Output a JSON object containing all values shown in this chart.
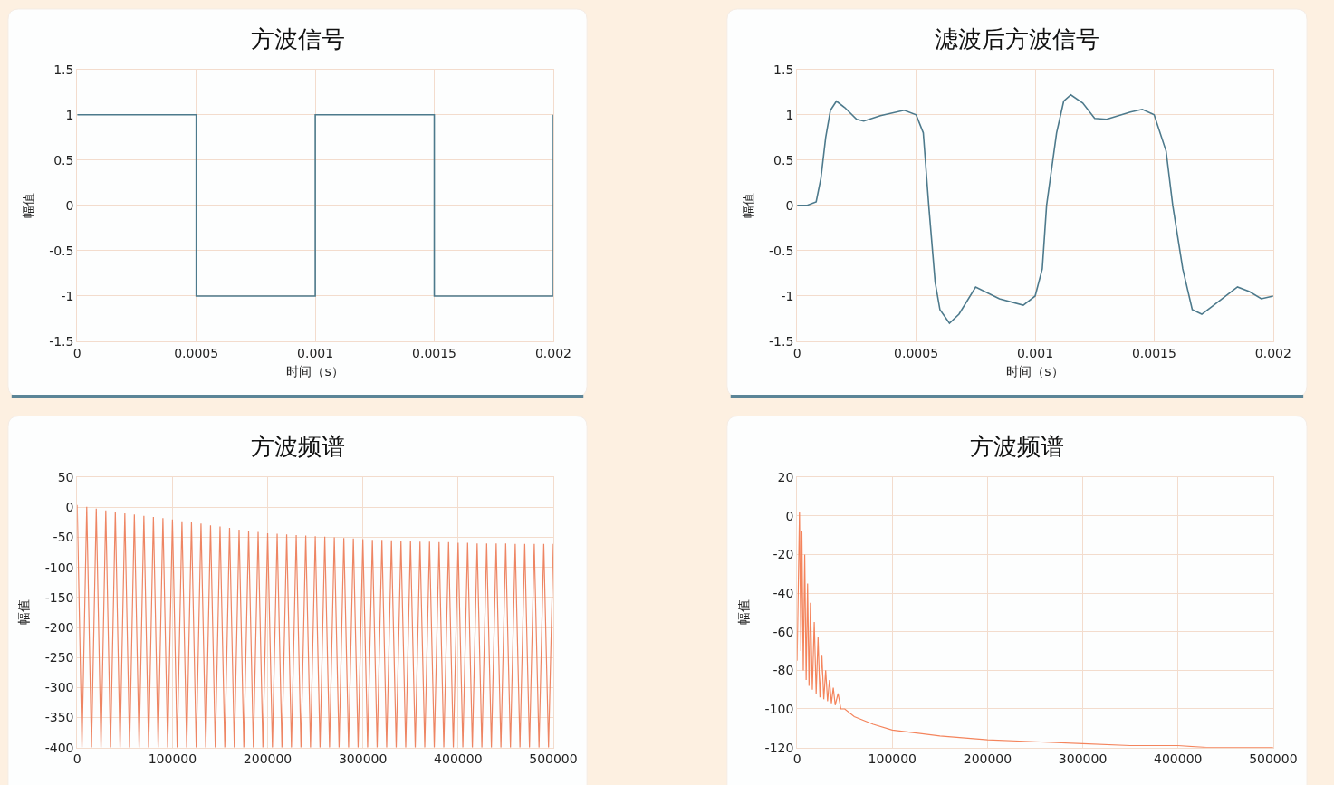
{
  "chart_data": [
    {
      "type": "step",
      "title": "方波信号",
      "xlabel": "时间（s）",
      "ylabel": "幅值",
      "x": [
        0,
        0.0005,
        0.001,
        0.0015,
        0.002
      ],
      "series": [
        {
          "color": "#4d7a8c",
          "values": [
            1,
            -1,
            1,
            -1,
            1
          ]
        }
      ],
      "xlim": [
        0,
        0.002
      ],
      "xticks": [
        0,
        0.0005,
        0.001,
        0.0015,
        0.002
      ],
      "ylim": [
        -1.5,
        1.5
      ],
      "yticks": [
        -1.5,
        -1,
        -0.5,
        0,
        0.5,
        1,
        1.5
      ],
      "grid": true
    },
    {
      "type": "line",
      "title": "滤波后方波信号",
      "xlabel": "时间（s）",
      "ylabel": "幅值",
      "x": [
        0,
        4e-05,
        8e-05,
        0.0001,
        0.00012,
        0.00014,
        0.000165,
        0.0002,
        0.00025,
        0.00028,
        0.00035,
        0.00045,
        0.0005,
        0.00053,
        0.000553,
        0.00058,
        0.0006,
        0.00064,
        0.00068,
        0.00075,
        0.00085,
        0.00095,
        0.001,
        0.00103,
        0.001048,
        0.00109,
        0.00112,
        0.00115,
        0.0012,
        0.00125,
        0.0013,
        0.0014,
        0.00145,
        0.0015,
        0.00155,
        0.001578,
        0.00162,
        0.00166,
        0.0017,
        0.00175,
        0.00185,
        0.0019,
        0.00195,
        0.002
      ],
      "series": [
        {
          "color": "#4d7a8c",
          "values": [
            0,
            0,
            0.04,
            0.3,
            0.75,
            1.05,
            1.15,
            1.08,
            0.95,
            0.93,
            0.99,
            1.05,
            1.0,
            0.8,
            0,
            -0.85,
            -1.15,
            -1.3,
            -1.2,
            -0.9,
            -1.03,
            -1.1,
            -1.0,
            -0.7,
            0,
            0.8,
            1.15,
            1.22,
            1.13,
            0.96,
            0.95,
            1.03,
            1.06,
            1.0,
            0.6,
            0,
            -0.7,
            -1.15,
            -1.2,
            -1.1,
            -0.9,
            -0.95,
            -1.03,
            -1.0
          ]
        }
      ],
      "xlim": [
        0,
        0.002
      ],
      "xticks": [
        0,
        0.0005,
        0.001,
        0.0015,
        0.002
      ],
      "ylim": [
        -1.5,
        1.5
      ],
      "yticks": [
        -1.5,
        -1,
        -0.5,
        0,
        0.5,
        1,
        1.5
      ],
      "grid": true
    },
    {
      "type": "line",
      "title": "方波频谱",
      "ylabel": "幅值",
      "x": [
        0,
        5000,
        10000,
        15000,
        20000,
        25000,
        30000,
        35000,
        40000,
        45000,
        50000,
        55000,
        60000,
        65000,
        70000,
        75000,
        80000,
        85000,
        90000,
        95000,
        100000,
        105000,
        110000,
        115000,
        120000,
        125000,
        130000,
        135000,
        140000,
        145000,
        150000,
        155000,
        160000,
        165000,
        170000,
        175000,
        180000,
        185000,
        190000,
        195000,
        200000,
        205000,
        210000,
        215000,
        220000,
        225000,
        230000,
        235000,
        240000,
        245000,
        250000,
        255000,
        260000,
        265000,
        270000,
        275000,
        280000,
        285000,
        290000,
        295000,
        300000,
        305000,
        310000,
        315000,
        320000,
        325000,
        330000,
        335000,
        340000,
        345000,
        350000,
        355000,
        360000,
        365000,
        370000,
        375000,
        380000,
        385000,
        390000,
        395000,
        400000,
        405000,
        410000,
        415000,
        420000,
        425000,
        430000,
        435000,
        440000,
        445000,
        450000,
        455000,
        460000,
        465000,
        470000,
        475000,
        480000,
        485000,
        490000,
        495000,
        500000
      ],
      "series": [
        {
          "color": "#ee8563",
          "values": [
            4,
            -400,
            1,
            -400,
            -2,
            -400,
            -5,
            -400,
            -7,
            -400,
            -10,
            -400,
            -12,
            -400,
            -14,
            -400,
            -16,
            -400,
            -18,
            -400,
            -20,
            -400,
            -23,
            -400,
            -25,
            -400,
            -27,
            -400,
            -30,
            -400,
            -32,
            -400,
            -34,
            -400,
            -37,
            -400,
            -39,
            -400,
            -41,
            -400,
            -43,
            -400,
            -44,
            -400,
            -45,
            -400,
            -46,
            -400,
            -47,
            -400,
            -48,
            -400,
            -49,
            -400,
            -50,
            -400,
            -51,
            -400,
            -52,
            -400,
            -53,
            -400,
            -54,
            -400,
            -54,
            -400,
            -55,
            -400,
            -56,
            -400,
            -56,
            -400,
            -57,
            -400,
            -57,
            -400,
            -58,
            -400,
            -58,
            -400,
            -59,
            -400,
            -59,
            -400,
            -60,
            -400,
            -60,
            -400,
            -60,
            -400,
            -60,
            -400,
            -61,
            -400,
            -61,
            -400,
            -61,
            -400,
            -61,
            -400,
            -61
          ]
        }
      ],
      "xlim": [
        0,
        500000
      ],
      "xticks": [
        0,
        100000,
        200000,
        300000,
        400000,
        500000
      ],
      "ylim": [
        -400,
        50
      ],
      "yticks": [
        -400,
        -350,
        -300,
        -250,
        -200,
        -150,
        -100,
        -50,
        0,
        50
      ],
      "grid": true
    },
    {
      "type": "line",
      "title": "方波频谱",
      "ylabel": "幅值",
      "x": [
        0,
        2500,
        4000,
        5000,
        6500,
        8000,
        9500,
        11000,
        12500,
        14000,
        16000,
        18000,
        20000,
        22000,
        24000,
        26000,
        28000,
        30000,
        32000,
        34000,
        36000,
        38000,
        40000,
        43000,
        46000,
        50000,
        60000,
        80000,
        100000,
        150000,
        200000,
        250000,
        300000,
        350000,
        400000,
        430000,
        500000
      ],
      "series": [
        {
          "color": "#f4845c",
          "values": [
            -75,
            2,
            -70,
            -8,
            -80,
            -20,
            -85,
            -35,
            -88,
            -45,
            -90,
            -55,
            -92,
            -63,
            -94,
            -72,
            -95,
            -80,
            -96,
            -85,
            -97,
            -89,
            -98,
            -92,
            -100,
            -100,
            -104,
            -108,
            -111,
            -114,
            -116,
            -117,
            -118,
            -119,
            -119,
            -120,
            -120
          ]
        }
      ],
      "xlim": [
        0,
        500000
      ],
      "xticks": [
        0,
        100000,
        200000,
        300000,
        400000,
        500000
      ],
      "ylim": [
        -120,
        20
      ],
      "yticks": [
        -120,
        -100,
        -80,
        -60,
        -40,
        -20,
        0,
        20
      ],
      "grid": true
    }
  ]
}
